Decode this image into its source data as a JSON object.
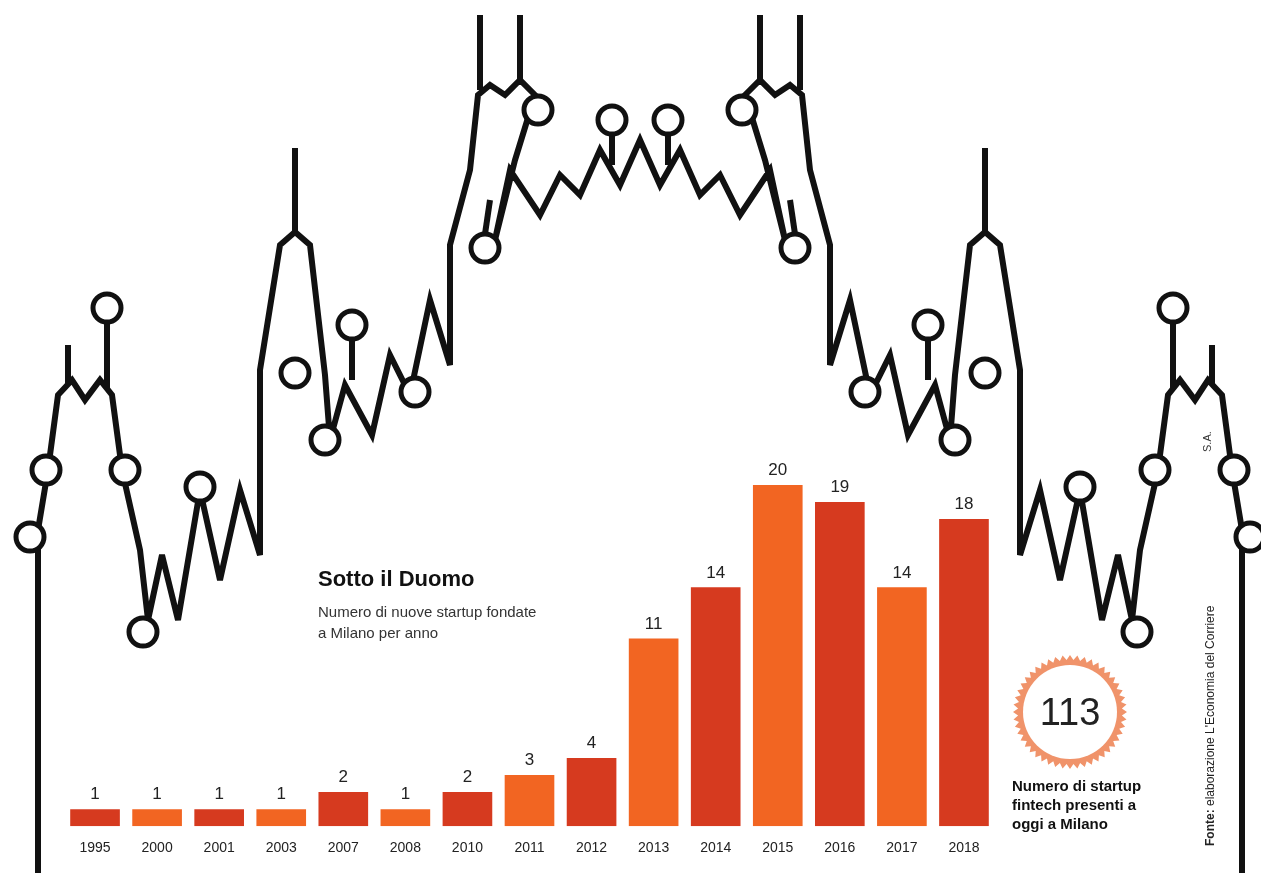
{
  "chart_data": {
    "type": "bar",
    "title": "Sotto il Duomo",
    "subtitle": "Numero di nuove startup fondate a Milano per anno",
    "categories": [
      "1995",
      "2000",
      "2001",
      "2003",
      "2007",
      "2008",
      "2010",
      "2011",
      "2012",
      "2013",
      "2014",
      "2015",
      "2016",
      "2017",
      "2018"
    ],
    "values": [
      1,
      1,
      1,
      1,
      2,
      1,
      2,
      3,
      4,
      11,
      14,
      20,
      19,
      14,
      18
    ],
    "colors": [
      "#d63a1f",
      "#f26522",
      "#d63a1f",
      "#f26522",
      "#d63a1f",
      "#f26522",
      "#d63a1f",
      "#f26522",
      "#d63a1f",
      "#f26522",
      "#d63a1f",
      "#f26522",
      "#d63a1f",
      "#f26522",
      "#d63a1f"
    ],
    "ylim": [
      0,
      20
    ],
    "yticks": [
      0,
      20
    ],
    "grid": false,
    "data_labels": true,
    "tick_labels": "x",
    "annotations": [
      {
        "value": 113,
        "text": "Numero di startup fintech presenti a oggi a Milano"
      }
    ],
    "source": "Fonte: elaborazione L'Economia del Corriere",
    "credit": "S.A."
  }
}
